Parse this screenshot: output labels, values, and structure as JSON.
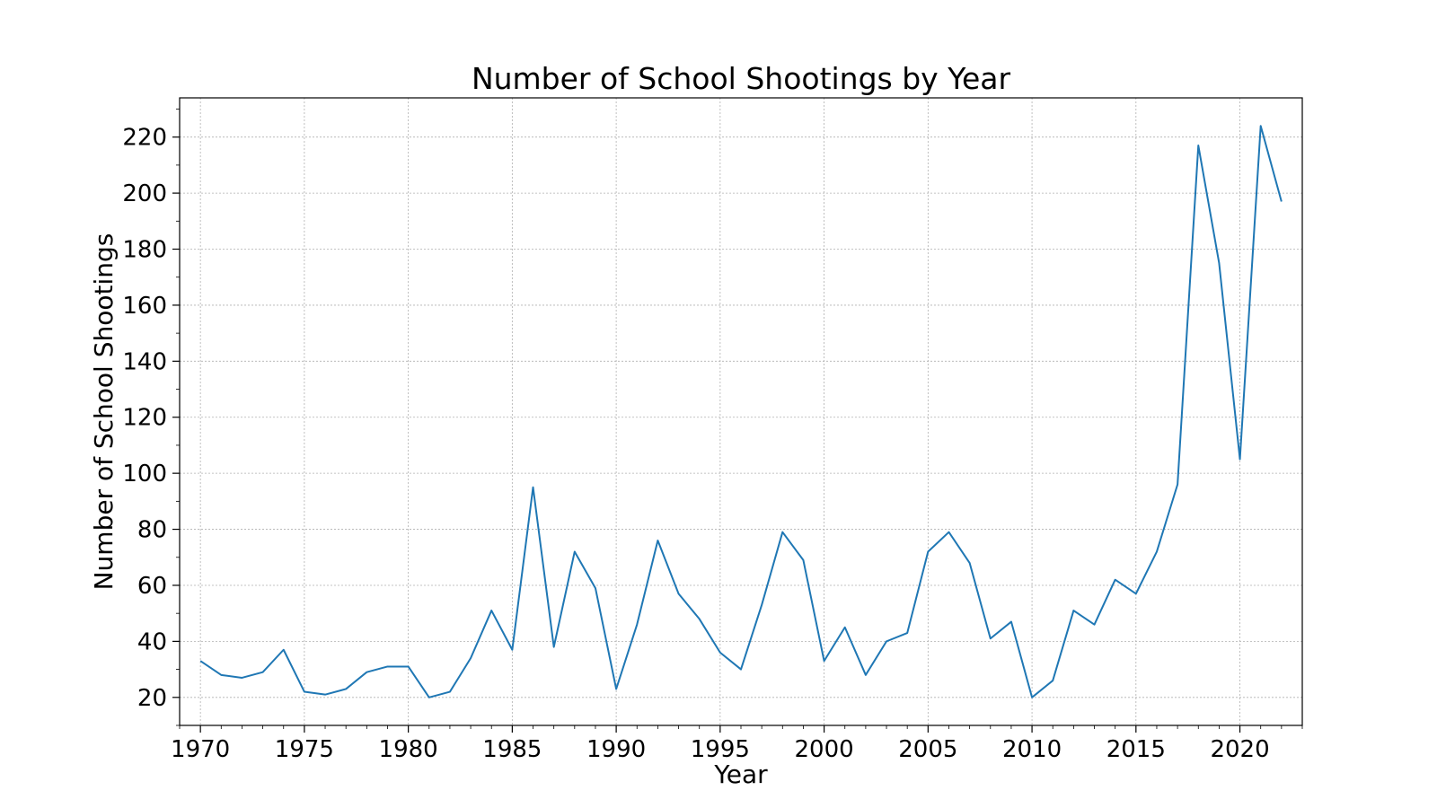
{
  "chart_data": {
    "type": "line",
    "title": "Number of School Shootings by Year",
    "xlabel": "Year",
    "ylabel": "Number of School Shootings",
    "xlim": [
      1969,
      2023
    ],
    "ylim": [
      10,
      234
    ],
    "grid": true,
    "x_ticks": [
      1970,
      1975,
      1980,
      1985,
      1990,
      1995,
      2000,
      2005,
      2010,
      2015,
      2020
    ],
    "y_ticks": [
      20,
      40,
      60,
      80,
      100,
      120,
      140,
      160,
      180,
      200,
      220
    ],
    "colors": {
      "line": "#1f77b4",
      "grid": "#b0b0b0",
      "axes": "#000000"
    },
    "series": [
      {
        "x": [
          1970,
          1971,
          1972,
          1973,
          1974,
          1975,
          1976,
          1977,
          1978,
          1979,
          1980,
          1981,
          1982,
          1983,
          1984,
          1985,
          1986,
          1987,
          1988,
          1989,
          1990,
          1991,
          1992,
          1993,
          1994,
          1995,
          1996,
          1997,
          1998,
          1999,
          2000,
          2001,
          2002,
          2003,
          2004,
          2005,
          2006,
          2007,
          2008,
          2009,
          2010,
          2011,
          2012,
          2013,
          2014,
          2015,
          2016,
          2017,
          2018,
          2019,
          2020,
          2021,
          2022
        ],
        "values": [
          33,
          28,
          27,
          29,
          37,
          22,
          21,
          23,
          29,
          31,
          31,
          20,
          22,
          34,
          51,
          37,
          95,
          38,
          72,
          59,
          23,
          46,
          76,
          57,
          48,
          36,
          30,
          53,
          79,
          69,
          33,
          45,
          28,
          40,
          43,
          72,
          79,
          68,
          41,
          47,
          20,
          26,
          51,
          46,
          62,
          57,
          72,
          96,
          217,
          175,
          105,
          224,
          197
        ]
      }
    ]
  }
}
